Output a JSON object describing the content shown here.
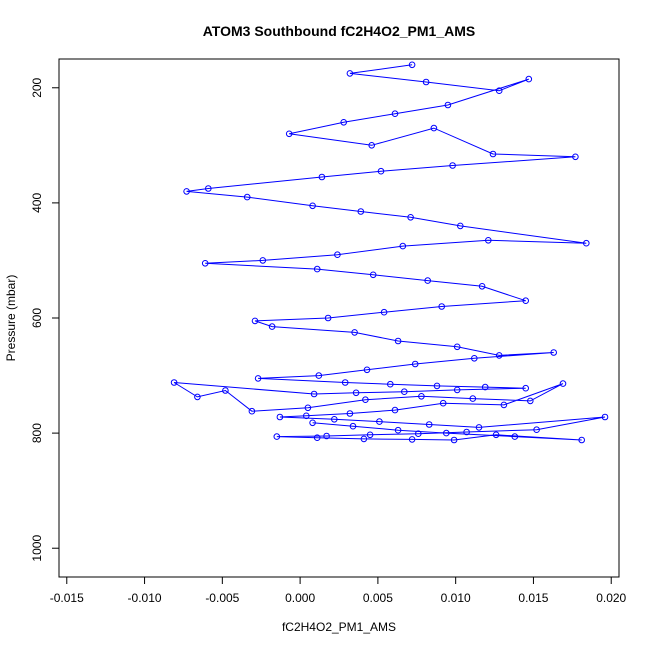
{
  "chart_data": {
    "type": "scatter",
    "title": "ATOM3 Southbound fC2H4O2_PM1_AMS",
    "xlabel": "fC2H4O2_PM1_AMS",
    "ylabel": "Pressure (mbar)",
    "xlim": [
      -0.0155,
      0.0205
    ],
    "ylim": [
      1050,
      150
    ],
    "y_reversed": true,
    "grid": false,
    "legend": "none",
    "marker": "open-circle",
    "connected": true,
    "color": "#0000ff",
    "x_ticks": [
      {
        "value": -0.015,
        "label": "-0.015"
      },
      {
        "value": -0.01,
        "label": "-0.010"
      },
      {
        "value": -0.005,
        "label": "-0.005"
      },
      {
        "value": 0.0,
        "label": "0.000"
      },
      {
        "value": 0.005,
        "label": "0.005"
      },
      {
        "value": 0.01,
        "label": "0.010"
      },
      {
        "value": 0.015,
        "label": "0.015"
      },
      {
        "value": 0.02,
        "label": "0.020"
      }
    ],
    "y_ticks": [
      {
        "value": 200,
        "label": "200"
      },
      {
        "value": 400,
        "label": "400"
      },
      {
        "value": 600,
        "label": "600"
      },
      {
        "value": 800,
        "label": "800"
      },
      {
        "value": 1000,
        "label": "1000"
      }
    ],
    "series": [
      {
        "x": [
          0.0072,
          0.0032,
          0.0081,
          0.0128,
          0.0147,
          0.0095,
          0.0061,
          0.0028,
          -0.0007,
          0.0046,
          0.0086,
          0.0124,
          0.0177,
          0.0098,
          0.0052,
          0.0014,
          -0.0059,
          -0.0073,
          -0.0034,
          0.0008,
          0.0039,
          0.0071,
          0.0103,
          0.0184,
          0.0121,
          0.0066,
          0.0024,
          -0.0024,
          -0.0061,
          0.0011,
          0.0047,
          0.0082,
          0.0117,
          0.0145,
          0.0091,
          0.0054,
          0.0018,
          -0.0029,
          -0.0018,
          0.0035,
          0.0063,
          0.0101,
          0.0128,
          0.0163,
          0.0112,
          0.0074,
          0.0043,
          0.0012,
          -0.0027,
          0.0029,
          0.0058,
          0.0088,
          0.0119,
          0.0145,
          0.0101,
          0.0067,
          0.0036,
          0.0009,
          -0.0081,
          -0.0066,
          -0.0048,
          -0.0031,
          0.0005,
          0.0042,
          0.0078,
          0.0111,
          0.0148,
          0.0169,
          0.0131,
          0.0092,
          0.0061,
          0.0032,
          0.0004,
          -0.0013,
          0.0022,
          0.0051,
          0.0083,
          0.0115,
          0.0196,
          0.0152,
          0.0107,
          0.0076,
          0.0045,
          0.0017,
          -0.0015,
          0.0011,
          0.0041,
          0.0072,
          0.0099,
          0.0126,
          0.0181,
          0.0138,
          0.0094,
          0.0063,
          0.0034,
          0.0008
        ],
        "y": [
          160,
          175,
          190,
          205,
          185,
          230,
          245,
          260,
          280,
          300,
          270,
          315,
          320,
          335,
          345,
          355,
          375,
          380,
          390,
          405,
          415,
          425,
          440,
          470,
          465,
          475,
          490,
          500,
          505,
          515,
          525,
          535,
          545,
          570,
          580,
          590,
          600,
          605,
          615,
          625,
          640,
          650,
          665,
          660,
          670,
          680,
          690,
          700,
          705,
          712,
          715,
          718,
          720,
          722,
          725,
          728,
          730,
          732,
          712,
          737,
          726,
          762,
          756,
          742,
          736,
          740,
          744,
          714,
          751,
          748,
          760,
          766,
          770,
          772,
          776,
          780,
          785,
          790,
          772,
          794,
          798,
          801,
          803,
          805,
          806,
          808,
          810,
          811,
          812,
          803,
          812,
          806,
          800,
          795,
          788,
          782
        ]
      }
    ]
  }
}
